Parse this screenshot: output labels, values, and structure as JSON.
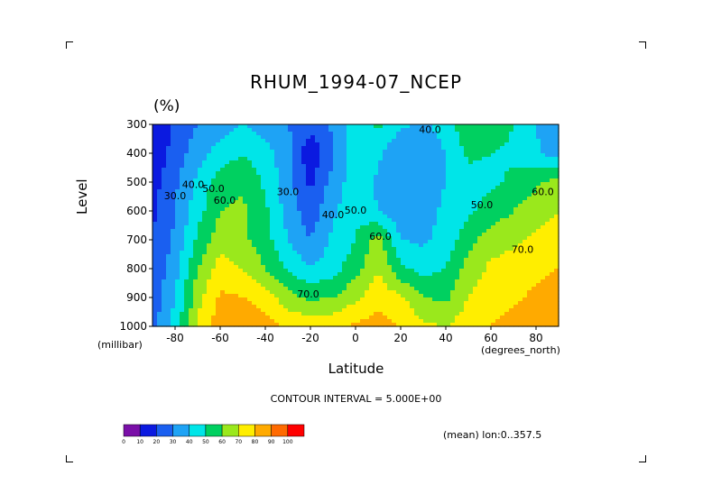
{
  "chart_data": {
    "type": "heatmap",
    "title": "RHUM_1994-07_NCEP",
    "units_label": "(%)",
    "xlabel": "Latitude",
    "ylabel": "Level",
    "x_units": "(degrees_north)",
    "y_units": "(millibar)",
    "xlim": [
      -90,
      90
    ],
    "ylim": [
      300,
      1000
    ],
    "y_reversed": true,
    "x_ticks": [
      -80,
      -60,
      -40,
      -20,
      0,
      20,
      40,
      60,
      80
    ],
    "y_ticks": [
      300,
      400,
      500,
      600,
      700,
      800,
      900,
      1000
    ],
    "x": [
      -90,
      -80,
      -70,
      -60,
      -50,
      -40,
      -30,
      -20,
      -10,
      0,
      10,
      20,
      30,
      40,
      50,
      60,
      70,
      80,
      90
    ],
    "y": [
      300,
      400,
      500,
      600,
      700,
      800,
      900,
      1000
    ],
    "z": [
      [
        10,
        22,
        30,
        36,
        40,
        36,
        30,
        24,
        32,
        45,
        52,
        42,
        38,
        44,
        58,
        56,
        50,
        40,
        30
      ],
      [
        12,
        24,
        36,
        44,
        50,
        44,
        34,
        12,
        28,
        50,
        42,
        30,
        34,
        40,
        52,
        50,
        48,
        42,
        34
      ],
      [
        16,
        28,
        42,
        56,
        58,
        48,
        34,
        18,
        34,
        46,
        38,
        30,
        34,
        40,
        46,
        48,
        52,
        58,
        64
      ],
      [
        18,
        30,
        46,
        60,
        62,
        52,
        36,
        24,
        38,
        48,
        40,
        32,
        36,
        42,
        48,
        54,
        60,
        66,
        70
      ],
      [
        20,
        32,
        52,
        66,
        62,
        54,
        40,
        30,
        42,
        50,
        64,
        40,
        38,
        44,
        56,
        66,
        68,
        72,
        74
      ],
      [
        22,
        36,
        60,
        74,
        70,
        60,
        48,
        40,
        46,
        56,
        70,
        52,
        46,
        50,
        64,
        72,
        74,
        78,
        80
      ],
      [
        24,
        40,
        66,
        82,
        80,
        76,
        64,
        58,
        60,
        68,
        76,
        72,
        60,
        58,
        70,
        76,
        78,
        82,
        84
      ],
      [
        26,
        44,
        72,
        86,
        88,
        84,
        78,
        76,
        78,
        82,
        84,
        80,
        72,
        70,
        76,
        80,
        84,
        88,
        90
      ]
    ],
    "contour_labels": [
      {
        "text": "30.0",
        "lat": -80,
        "lev": 560
      },
      {
        "text": "40.0",
        "lat": -72,
        "lev": 520
      },
      {
        "text": "50.0",
        "lat": -63,
        "lev": 535
      },
      {
        "text": "60.0",
        "lat": -58,
        "lev": 575
      },
      {
        "text": "30.0",
        "lat": -30,
        "lev": 545
      },
      {
        "text": "40.0",
        "lat": -10,
        "lev": 625
      },
      {
        "text": "50.0",
        "lat": 0,
        "lev": 610
      },
      {
        "text": "60.0",
        "lat": 11,
        "lev": 700
      },
      {
        "text": "40.0",
        "lat": 33,
        "lev": 330
      },
      {
        "text": "50.0",
        "lat": 56,
        "lev": 590
      },
      {
        "text": "60.0",
        "lat": 83,
        "lev": 545
      },
      {
        "text": "70.0",
        "lat": 74,
        "lev": 745
      },
      {
        "text": "70.0",
        "lat": -21,
        "lev": 900
      }
    ],
    "colorbar": {
      "levels": [
        0,
        10,
        20,
        30,
        40,
        50,
        60,
        70,
        80,
        90,
        100
      ],
      "colors": [
        "#7a0fa8",
        "#0b1ae0",
        "#1a5ff0",
        "#1ea3f5",
        "#00e5e8",
        "#00d060",
        "#9ae81c",
        "#ffee00",
        "#ffaa00",
        "#ff6a00",
        "#ff0000"
      ]
    },
    "contour_interval_text": "CONTOUR INTERVAL = 5.000E+00",
    "mean_text": "(mean) lon:0..357.5"
  }
}
